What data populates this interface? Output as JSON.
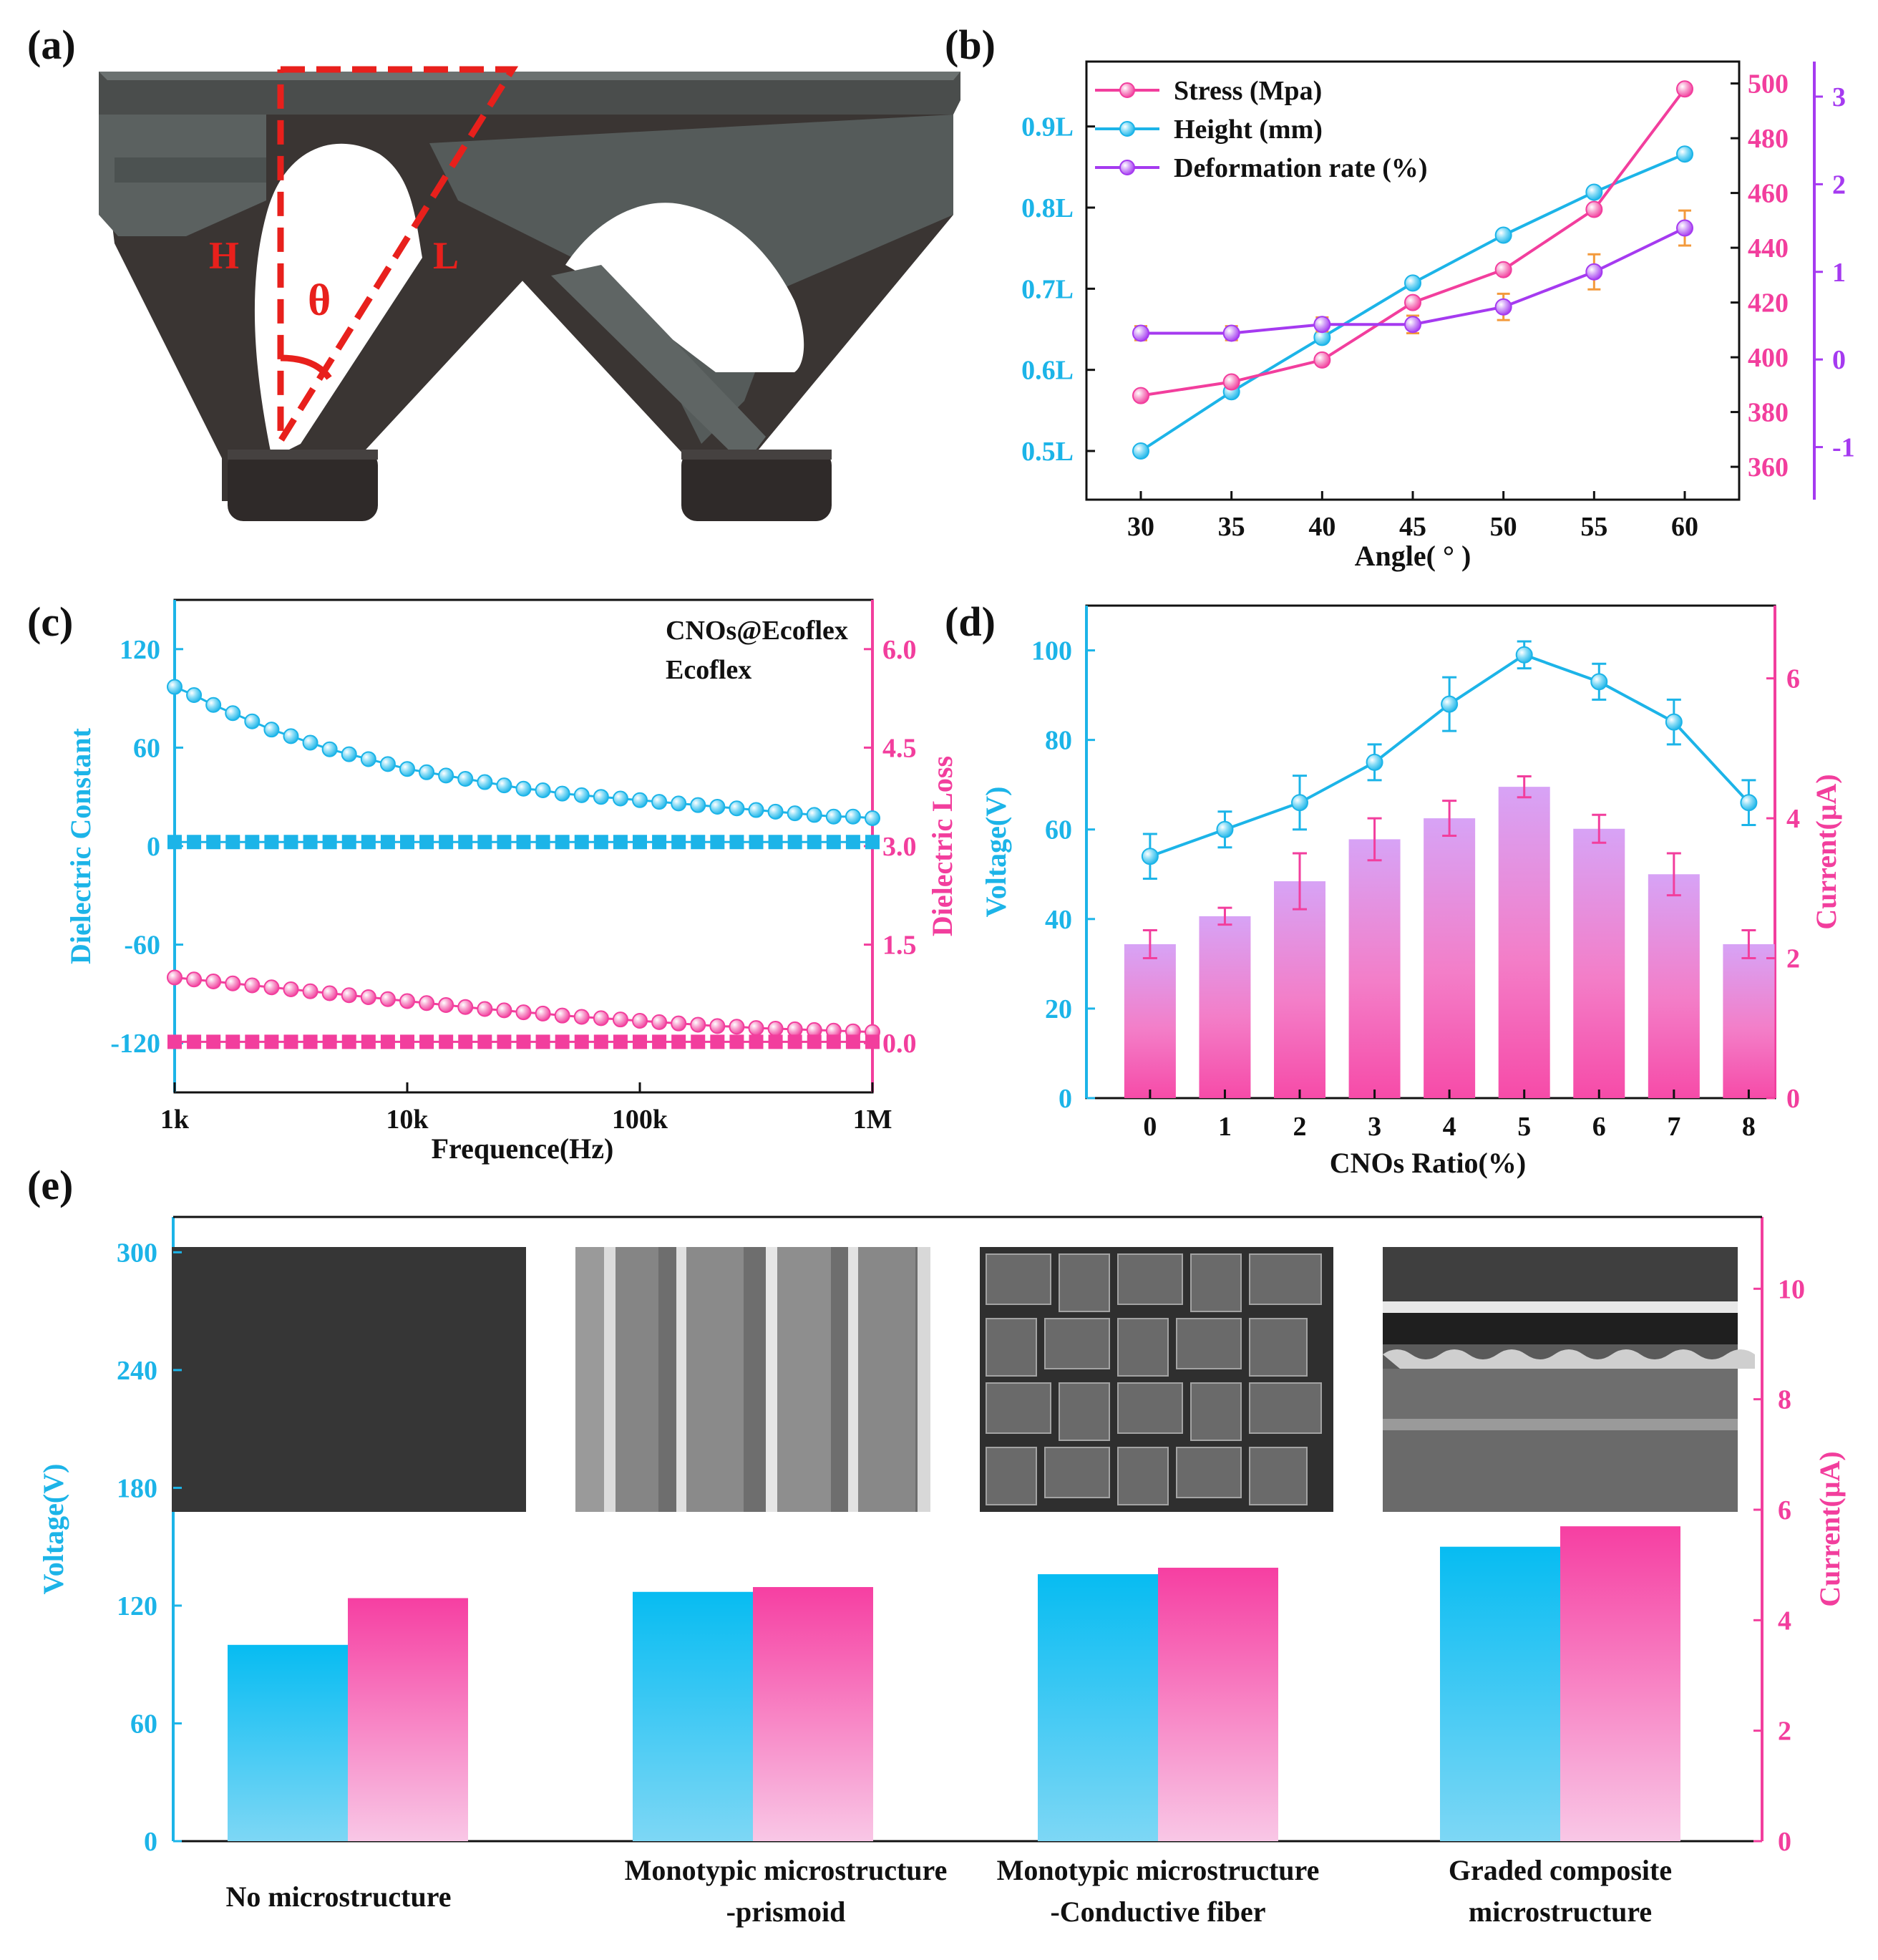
{
  "colors": {
    "cyan": "#1CB4E8",
    "pink": "#F23E9D",
    "purple": "#A53AF0",
    "orange": "#F39A3B",
    "red": "#E8201C",
    "dark_part": "#3c3836",
    "light_part": "#5a605f"
  },
  "chart_data": [
    {
      "panel": "(a)",
      "type": "diagram",
      "labels": {
        "H": "H",
        "L": "L",
        "theta": "θ"
      }
    },
    {
      "panel": "(b)",
      "type": "line",
      "x": [
        30,
        35,
        40,
        45,
        50,
        55,
        60
      ],
      "xlabel": "Angle( ° )",
      "xticks": [
        "30",
        "35",
        "40",
        "45",
        "50",
        "55",
        "60"
      ],
      "series": [
        {
          "name": "Stress (Mpa)",
          "axis": "right1",
          "values": [
            386,
            391,
            399,
            420,
            432,
            454,
            498
          ],
          "errors": [
            0,
            0,
            0,
            0,
            0,
            0,
            0
          ]
        },
        {
          "name": "Height (mm)",
          "axis": "left",
          "values": [
            0.5,
            0.573,
            0.64,
            0.707,
            0.766,
            0.819,
            0.866
          ],
          "errors": [
            0,
            0,
            0,
            0,
            0,
            0,
            0
          ]
        },
        {
          "name": "Deformation rate (%)",
          "axis": "right2",
          "values": [
            0.3,
            0.3,
            0.4,
            0.4,
            0.6,
            1.0,
            1.5
          ],
          "errors": [
            0.08,
            0.08,
            0.08,
            0.1,
            0.15,
            0.2,
            0.2
          ]
        }
      ],
      "left_axis": {
        "ylim": [
          0.44,
          0.98
        ],
        "ticks": [
          "0.5L",
          "0.6L",
          "0.7L",
          "0.8L",
          "0.9L"
        ]
      },
      "right1_axis": {
        "ylim": [
          348,
          508
        ],
        "ticks": [
          "360",
          "380",
          "400",
          "420",
          "440",
          "460",
          "480",
          "500"
        ]
      },
      "right2_axis": {
        "ylim": [
          -1.6,
          3.4
        ],
        "ticks": [
          "-1",
          "0",
          "1",
          "2",
          "3"
        ]
      }
    },
    {
      "panel": "(c)",
      "type": "line",
      "xscale": "log",
      "xlabel": "Frequence(Hz)",
      "xticks": [
        "1k",
        "10k",
        "100k",
        "1M"
      ],
      "ylabel_left": "Dielectric Constant",
      "ylabel_right": "Dielectric Loss",
      "left_axis": {
        "ylim": [
          -150,
          150
        ],
        "ticks": [
          "120",
          "60",
          "0",
          "-60",
          "-120"
        ]
      },
      "right_axis": {
        "ylim": [
          -0.75,
          6.75
        ],
        "ticks": [
          "6.0",
          "4.5",
          "3.0",
          "1.5",
          "0.0"
        ]
      },
      "series": [
        {
          "name": "CNOs@Ecoflex",
          "quantity": "Dielectric Constant",
          "x_range_hz": [
            1000,
            1000000
          ],
          "values": [
            97,
            92,
            86,
            81,
            76,
            71,
            67,
            63,
            59,
            56,
            53,
            50,
            47,
            45,
            43,
            41,
            39,
            37,
            35,
            34,
            32,
            31,
            30,
            29,
            28,
            27,
            26,
            25,
            24,
            23,
            22,
            21,
            20,
            19,
            18,
            18,
            17
          ]
        },
        {
          "name": "Ecoflex",
          "quantity": "Dielectric Constant",
          "values": [
            2.5,
            2.5,
            2.5,
            2.5,
            2.5,
            2.5,
            2.5,
            2.5,
            2.5,
            2.5,
            2.5,
            2.5,
            2.5,
            2.5,
            2.5,
            2.5,
            2.5,
            2.5,
            2.5,
            2.5,
            2.5,
            2.5,
            2.5,
            2.5,
            2.5,
            2.5,
            2.5,
            2.5,
            2.5,
            2.5,
            2.5,
            2.5,
            2.5,
            2.5,
            2.5,
            2.5,
            2.5
          ]
        },
        {
          "name": "CNOs@Ecoflex",
          "quantity": "Dielectric Loss",
          "values": [
            1.0,
            0.97,
            0.94,
            0.91,
            0.88,
            0.85,
            0.82,
            0.79,
            0.76,
            0.73,
            0.7,
            0.67,
            0.64,
            0.61,
            0.58,
            0.55,
            0.52,
            0.5,
            0.47,
            0.45,
            0.42,
            0.4,
            0.38,
            0.36,
            0.34,
            0.32,
            0.3,
            0.28,
            0.26,
            0.25,
            0.23,
            0.22,
            0.21,
            0.2,
            0.19,
            0.18,
            0.17
          ]
        },
        {
          "name": "Ecoflex",
          "quantity": "Dielectric Loss",
          "values": [
            0.02,
            0.02,
            0.02,
            0.02,
            0.02,
            0.02,
            0.02,
            0.02,
            0.02,
            0.02,
            0.02,
            0.02,
            0.02,
            0.02,
            0.02,
            0.02,
            0.02,
            0.02,
            0.02,
            0.02,
            0.02,
            0.02,
            0.02,
            0.02,
            0.02,
            0.02,
            0.02,
            0.02,
            0.02,
            0.02,
            0.02,
            0.02,
            0.02,
            0.02,
            0.02,
            0.02,
            0.02
          ]
        }
      ],
      "legend": [
        "CNOs@Ecoflex",
        "Ecoflex"
      ]
    },
    {
      "panel": "(d)",
      "type": "bar+line",
      "xlabel": "CNOs Ratio(%)",
      "ylabel_left": "Voltage(V)",
      "ylabel_right": "Current(μA)",
      "categories": [
        "0",
        "1",
        "2",
        "3",
        "4",
        "5",
        "6",
        "7",
        "8"
      ],
      "voltage": {
        "values": [
          54,
          60,
          66,
          75,
          88,
          99,
          93,
          84,
          66
        ],
        "errors": [
          5,
          4,
          6,
          4,
          6,
          3,
          4,
          5,
          5
        ]
      },
      "current": {
        "values": [
          2.2,
          2.6,
          3.1,
          3.7,
          4.0,
          4.45,
          3.85,
          3.2,
          2.2
        ],
        "errors": [
          0.2,
          0.12,
          0.4,
          0.3,
          0.25,
          0.15,
          0.2,
          0.3,
          0.2
        ]
      },
      "left_axis": {
        "ylim": [
          0,
          110
        ],
        "ticks": [
          "0",
          "20",
          "40",
          "60",
          "80",
          "100"
        ]
      },
      "right_axis": {
        "ylim": [
          0,
          7.04
        ],
        "ticks": [
          "0",
          "2",
          "4",
          "6"
        ]
      }
    },
    {
      "panel": "(e)",
      "type": "bar",
      "ylabel_left": "Voltage(V)",
      "ylabel_right": "Current(μA)",
      "categories": [
        [
          "No microstructure"
        ],
        [
          "Monotypic microstructure",
          "-prismoid"
        ],
        [
          "Monotypic microstructure",
          "-Conductive fiber"
        ],
        [
          "Graded composite",
          "microstructure"
        ]
      ],
      "voltage": [
        100,
        127,
        136,
        150
      ],
      "current": [
        4.4,
        4.6,
        4.95,
        5.7
      ],
      "left_axis": {
        "ylim": [
          0,
          318
        ],
        "ticks": [
          "0",
          "60",
          "120",
          "180",
          "240",
          "300"
        ]
      },
      "right_axis": {
        "ylim": [
          0,
          11.3
        ],
        "ticks": [
          "0",
          "2",
          "4",
          "6",
          "8",
          "10"
        ]
      }
    }
  ],
  "panel_labels": [
    "(a)",
    "(b)",
    "(c)",
    "(d)",
    "(e)"
  ]
}
